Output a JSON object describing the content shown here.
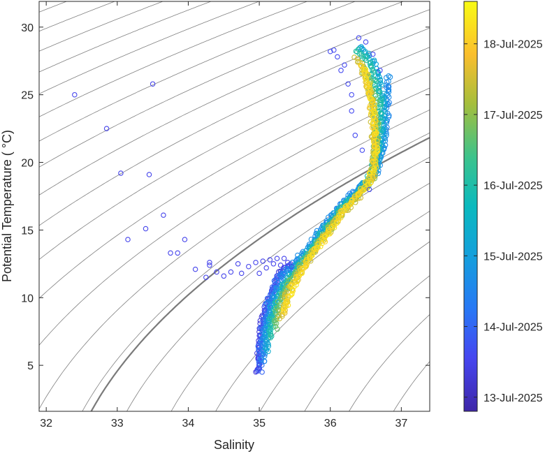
{
  "chart_data": {
    "type": "scatter",
    "xlabel": "Salinity",
    "ylabel": "Potential Temperature ( °C)",
    "xlim": [
      31.9,
      37.4
    ],
    "ylim": [
      1.6,
      31.9
    ],
    "xticks": [
      32,
      33,
      34,
      35,
      36,
      37
    ],
    "yticks": [
      5,
      10,
      15,
      20,
      25,
      30
    ],
    "background": "density isopleths (thin gray contours) with one emphasized thicker gray isopleth",
    "marker": "open circle",
    "colormap": "parula (dark blue to yellow), mapped to time",
    "colorbar": {
      "placement": "right",
      "tick_labels": [
        "13-Jul-2025",
        "14-Jul-2025",
        "15-Jul-2025",
        "16-Jul-2025",
        "17-Jul-2025",
        "18-Jul-2025"
      ],
      "tick_values": [
        0,
        1,
        2,
        3,
        4,
        5
      ],
      "range": [
        -0.2,
        5.6
      ]
    },
    "scatter_isolated": [
      {
        "s": 32.4,
        "t": 25.0,
        "c": 0.5
      },
      {
        "s": 33.5,
        "t": 25.8,
        "c": 0.5
      },
      {
        "s": 32.85,
        "t": 22.5,
        "c": 0.5
      },
      {
        "s": 33.05,
        "t": 19.2,
        "c": 0.5
      },
      {
        "s": 33.45,
        "t": 19.1,
        "c": 0.5
      },
      {
        "s": 33.65,
        "t": 16.1,
        "c": 0.5
      },
      {
        "s": 33.4,
        "t": 15.1,
        "c": 0.5
      },
      {
        "s": 33.15,
        "t": 14.3,
        "c": 0.5
      },
      {
        "s": 33.95,
        "t": 14.3,
        "c": 0.5
      },
      {
        "s": 33.75,
        "t": 13.3,
        "c": 0.5
      },
      {
        "s": 33.85,
        "t": 13.3,
        "c": 0.5
      },
      {
        "s": 34.1,
        "t": 12.1,
        "c": 0.5
      },
      {
        "s": 34.3,
        "t": 12.6,
        "c": 0.5
      },
      {
        "s": 34.3,
        "t": 12.4,
        "c": 0.5
      },
      {
        "s": 34.25,
        "t": 11.5,
        "c": 0.5
      },
      {
        "s": 34.4,
        "t": 11.9,
        "c": 0.5
      },
      {
        "s": 34.5,
        "t": 11.6,
        "c": 0.5
      },
      {
        "s": 34.6,
        "t": 11.9,
        "c": 0.5
      },
      {
        "s": 34.7,
        "t": 12.5,
        "c": 0.5
      },
      {
        "s": 34.75,
        "t": 11.8,
        "c": 0.5
      },
      {
        "s": 34.85,
        "t": 12.3,
        "c": 0.5
      },
      {
        "s": 34.95,
        "t": 12.6,
        "c": 0.5
      },
      {
        "s": 35.0,
        "t": 11.8,
        "c": 0.5
      },
      {
        "s": 35.05,
        "t": 12.7,
        "c": 0.5
      },
      {
        "s": 35.1,
        "t": 12.2,
        "c": 0.5
      },
      {
        "s": 35.15,
        "t": 12.8,
        "c": 0.5
      },
      {
        "s": 35.2,
        "t": 12.5,
        "c": 0.5
      },
      {
        "s": 35.25,
        "t": 12.9,
        "c": 0.5
      },
      {
        "s": 35.3,
        "t": 12.4,
        "c": 0.5
      },
      {
        "s": 35.35,
        "t": 12.9,
        "c": 0.5
      },
      {
        "s": 35.4,
        "t": 12.6,
        "c": 0.5
      },
      {
        "s": 35.45,
        "t": 12.3,
        "c": 0.5
      },
      {
        "s": 36.0,
        "t": 28.2,
        "c": 0.6
      },
      {
        "s": 36.05,
        "t": 28.3,
        "c": 0.6
      },
      {
        "s": 36.1,
        "t": 27.8,
        "c": 0.6
      },
      {
        "s": 36.15,
        "t": 26.8,
        "c": 0.6
      },
      {
        "s": 36.2,
        "t": 27.2,
        "c": 0.6
      },
      {
        "s": 36.25,
        "t": 25.8,
        "c": 0.6
      },
      {
        "s": 36.3,
        "t": 25.0,
        "c": 0.6
      },
      {
        "s": 36.3,
        "t": 23.8,
        "c": 0.6
      },
      {
        "s": 36.35,
        "t": 22.0,
        "c": 0.6
      },
      {
        "s": 36.45,
        "t": 20.9,
        "c": 0.6
      },
      {
        "s": 36.55,
        "t": 18.0,
        "c": 0.6
      },
      {
        "s": 36.4,
        "t": 29.2,
        "c": 0.6
      },
      {
        "s": 36.5,
        "t": 28.9,
        "c": 0.6
      },
      {
        "s": 36.6,
        "t": 28.0,
        "c": 0.6
      },
      {
        "s": 36.7,
        "t": 26.8,
        "c": 0.6
      }
    ],
    "scatter_tracks": [
      {
        "c": 0.4,
        "jitter": 0.03,
        "n": 5,
        "path": [
          [
            34.98,
            4.4
          ],
          [
            35.0,
            6.5
          ],
          [
            35.05,
            8.6
          ],
          [
            35.15,
            10.0
          ],
          [
            35.25,
            11.2
          ],
          [
            35.3,
            12.0
          ],
          [
            35.4,
            12.3
          ],
          [
            35.55,
            12.5
          ]
        ]
      },
      {
        "c": 1.0,
        "jitter": 0.04,
        "n": 5,
        "path": [
          [
            35.0,
            4.6
          ],
          [
            35.02,
            7.0
          ],
          [
            35.1,
            9.3
          ],
          [
            35.2,
            10.8
          ],
          [
            35.35,
            11.9
          ],
          [
            35.45,
            12.3
          ]
        ]
      },
      {
        "c": 1.6,
        "jitter": 0.035,
        "n": 5,
        "path": [
          [
            35.05,
            5.3
          ],
          [
            35.08,
            7.8
          ],
          [
            35.15,
            9.6
          ],
          [
            35.35,
            11.7
          ],
          [
            35.6,
            13.2
          ],
          [
            35.9,
            15.2
          ],
          [
            36.15,
            16.9
          ],
          [
            36.45,
            18.4
          ],
          [
            36.65,
            19.3
          ],
          [
            36.75,
            21.5
          ],
          [
            36.8,
            23.8
          ],
          [
            36.82,
            26.5
          ]
        ]
      },
      {
        "c": 2.2,
        "jitter": 0.035,
        "n": 5,
        "path": [
          [
            35.1,
            6.0
          ],
          [
            35.12,
            8.0
          ],
          [
            35.25,
            10.2
          ],
          [
            35.5,
            12.2
          ],
          [
            35.8,
            14.2
          ],
          [
            36.1,
            16.4
          ],
          [
            36.4,
            18.0
          ],
          [
            36.6,
            19.0
          ],
          [
            36.7,
            20.5
          ],
          [
            36.75,
            23.0
          ],
          [
            36.72,
            25.5
          ],
          [
            36.6,
            27.5
          ],
          [
            36.4,
            28.7
          ]
        ]
      },
      {
        "c": 3.0,
        "jitter": 0.04,
        "n": 5,
        "path": [
          [
            35.15,
            7.0
          ],
          [
            35.2,
            9.0
          ],
          [
            35.35,
            10.8
          ],
          [
            35.6,
            12.7
          ],
          [
            35.9,
            14.8
          ],
          [
            36.2,
            16.8
          ],
          [
            36.5,
            18.3
          ],
          [
            36.62,
            19.8
          ],
          [
            36.68,
            22.0
          ],
          [
            36.7,
            24.5
          ],
          [
            36.55,
            27.2
          ],
          [
            36.35,
            28.5
          ]
        ]
      },
      {
        "c": 3.8,
        "jitter": 0.04,
        "n": 5,
        "path": [
          [
            35.22,
            7.8
          ],
          [
            35.3,
            9.8
          ],
          [
            35.5,
            11.7
          ],
          [
            35.75,
            13.5
          ],
          [
            36.05,
            15.6
          ],
          [
            36.35,
            17.4
          ],
          [
            36.58,
            18.7
          ],
          [
            36.63,
            20.5
          ],
          [
            36.65,
            22.8
          ],
          [
            36.6,
            25.2
          ],
          [
            36.45,
            27.2
          ]
        ]
      },
      {
        "c": 4.5,
        "jitter": 0.04,
        "n": 5,
        "path": [
          [
            35.3,
            8.5
          ],
          [
            35.4,
            10.3
          ],
          [
            35.6,
            12.2
          ],
          [
            35.85,
            14.0
          ],
          [
            36.15,
            16.2
          ],
          [
            36.45,
            17.8
          ],
          [
            36.6,
            19.0
          ],
          [
            36.62,
            21.0
          ],
          [
            36.6,
            23.5
          ],
          [
            36.55,
            25.5
          ],
          [
            36.45,
            27.0
          ],
          [
            36.35,
            27.8
          ]
        ]
      },
      {
        "c": 5.2,
        "jitter": 0.035,
        "n": 5,
        "path": [
          [
            35.35,
            8.9
          ],
          [
            35.45,
            10.6
          ],
          [
            35.65,
            12.5
          ],
          [
            35.95,
            14.6
          ],
          [
            36.25,
            16.8
          ],
          [
            36.5,
            18.2
          ],
          [
            36.62,
            19.6
          ],
          [
            36.64,
            21.5
          ],
          [
            36.6,
            23.8
          ],
          [
            36.55,
            25.8
          ],
          [
            36.45,
            27.3
          ]
        ]
      }
    ],
    "isopycnals": {
      "sigma_min": 19.0,
      "sigma_max": 30.5,
      "step": 0.5,
      "highlighted_sigma": 26.1
    }
  }
}
